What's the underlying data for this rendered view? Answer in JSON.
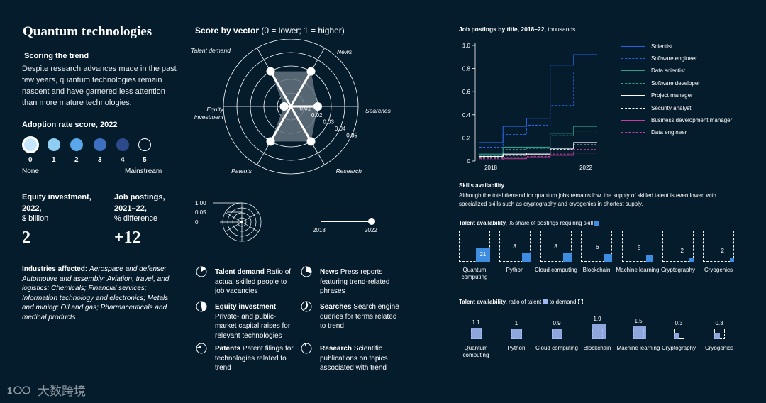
{
  "left": {
    "title": "Quantum technologies",
    "scoring_heading": "Scoring the trend",
    "scoring_text": "Despite research advances made in the past few years, quantum technologies remain nascent and have garnered less attention than more mature technologies.",
    "adoption_heading": "Adoption rate score, 2022",
    "adoption_levels": [
      "0",
      "1",
      "2",
      "3",
      "4",
      "5"
    ],
    "adoption_selected": 0,
    "adoption_colors": [
      "#c6e7fb",
      "#8fcdf3",
      "#5aa7ea",
      "#3f6fc0",
      "#2c4a8a",
      "#051c2c"
    ],
    "adoption_none": "None",
    "adoption_mainstream": "Mainstream",
    "equity_heading": "Equity investment, 2022,",
    "equity_unit": "$ billion",
    "equity_value": "2",
    "jobs_heading": "Job postings, 2021–22,",
    "jobs_unit": "% difference",
    "jobs_value": "+12",
    "industries_label": "Industries affected:",
    "industries_text": "Aerospace and defense; Automotive and assembly; Aviation, travel, and logistics; Chemicals; Financial services; Information technology and electronics; Metals and mining; Oil and gas; Pharmaceuticals and medical products"
  },
  "middle": {
    "heading": "Score by vector",
    "heading_note": "(0 = lower; 1 = higher)",
    "mini_scale": [
      "1.00",
      "0.05",
      "0"
    ],
    "slider_start": "2018",
    "slider_end": "2022",
    "definitions": [
      {
        "term": "Talent demand",
        "desc": "Ratio of actual skilled people to job vacancies"
      },
      {
        "term": "News",
        "desc": "Press reports featuring trend-related phrases"
      },
      {
        "term": "Equity investment",
        "desc": "Private- and public-market capital raises for relevant technologies"
      },
      {
        "term": "Searches",
        "desc": "Search engine queries for terms related to trend"
      },
      {
        "term": "Patents",
        "desc": "Patent filings for technologies related to trend"
      },
      {
        "term": "Research",
        "desc": "Scientific publications on topics associated with trend"
      }
    ]
  },
  "right": {
    "skills_heading": "Skills availability",
    "skills_text": "Although the total demand for quantum jobs remains low, the supply of skilled talent is even lower, with specialized skills such as cryptography and cryogenics in shortest supply.",
    "talent_share_heading": "Talent availability,",
    "talent_share_note": "% share of postings requiring skill",
    "talent_ratio_heading": "Talent availability,",
    "talent_ratio_note": "ratio of talent",
    "talent_ratio_note2": "to demand"
  },
  "chart_data": [
    {
      "type": "radar",
      "title": "Score by vector (0 = lower; 1 = higher)",
      "axes": [
        "Talent demand",
        "News",
        "Searches",
        "Research",
        "Patents",
        "Equity investment"
      ],
      "ring_labels": [
        "0.01",
        "0.02",
        "0.03",
        "0.04",
        "0.05"
      ],
      "values": [
        0.03,
        0.03,
        0.02,
        0.03,
        0.03,
        0.005
      ],
      "range": [
        0,
        0.05
      ]
    },
    {
      "type": "line",
      "title": "Job postings by title, 2018–22,",
      "unit": "thousands",
      "x": [
        2018,
        2019,
        2020,
        2021,
        2022
      ],
      "x_tick_labels": [
        "2018",
        "2022"
      ],
      "y_tick_labels": [
        "0",
        "0.2",
        "0.4",
        "0.6",
        "0.8",
        "1.0"
      ],
      "ylim": [
        0,
        1.0
      ],
      "series": [
        {
          "name": "Scientist",
          "color": "#2b63e0",
          "dash": "solid",
          "values": [
            0.16,
            0.3,
            0.37,
            0.83,
            0.92
          ]
        },
        {
          "name": "Software engineer",
          "color": "#2b63e0",
          "dash": "dashed",
          "values": [
            0.12,
            0.23,
            0.31,
            0.48,
            0.77
          ]
        },
        {
          "name": "Data scientist",
          "color": "#2f9e8f",
          "dash": "solid",
          "values": [
            0.06,
            0.12,
            0.12,
            0.24,
            0.3
          ]
        },
        {
          "name": "Software developer",
          "color": "#2f9e8f",
          "dash": "dashed",
          "values": [
            0.05,
            0.1,
            0.11,
            0.22,
            0.26
          ]
        },
        {
          "name": "Project manager",
          "color": "#ffffff",
          "dash": "solid",
          "values": [
            0.04,
            0.06,
            0.06,
            0.11,
            0.16
          ]
        },
        {
          "name": "Security analyst",
          "color": "#ffffff",
          "dash": "dashed",
          "values": [
            0.03,
            0.05,
            0.07,
            0.1,
            0.14
          ]
        },
        {
          "name": "Business development manager",
          "color": "#c23e9a",
          "dash": "solid",
          "values": [
            0.01,
            0.02,
            0.03,
            0.05,
            0.07
          ]
        },
        {
          "name": "Data engineer",
          "color": "#c23e9a",
          "dash": "dashed",
          "values": [
            0.02,
            0.03,
            0.04,
            0.06,
            0.1
          ]
        }
      ]
    },
    {
      "type": "bar",
      "title": "Talent availability, % share of postings requiring skill",
      "categories": [
        "Quantum computing",
        "Python",
        "Cloud computing",
        "Blockchain",
        "Machine learning",
        "Cryptography",
        "Cryogenics"
      ],
      "values": [
        21,
        8,
        8,
        6,
        5,
        2,
        2
      ],
      "max": 100
    },
    {
      "type": "bar",
      "title": "Talent availability, ratio of talent to demand",
      "categories": [
        "Quantum computing",
        "Python",
        "Cloud computing",
        "Blockchain",
        "Machine learning",
        "Cryptography",
        "Cryogenics"
      ],
      "values": [
        1.1,
        1.0,
        0.9,
        1.9,
        1.5,
        0.3,
        0.3
      ]
    }
  ],
  "watermark": "大数跨境"
}
